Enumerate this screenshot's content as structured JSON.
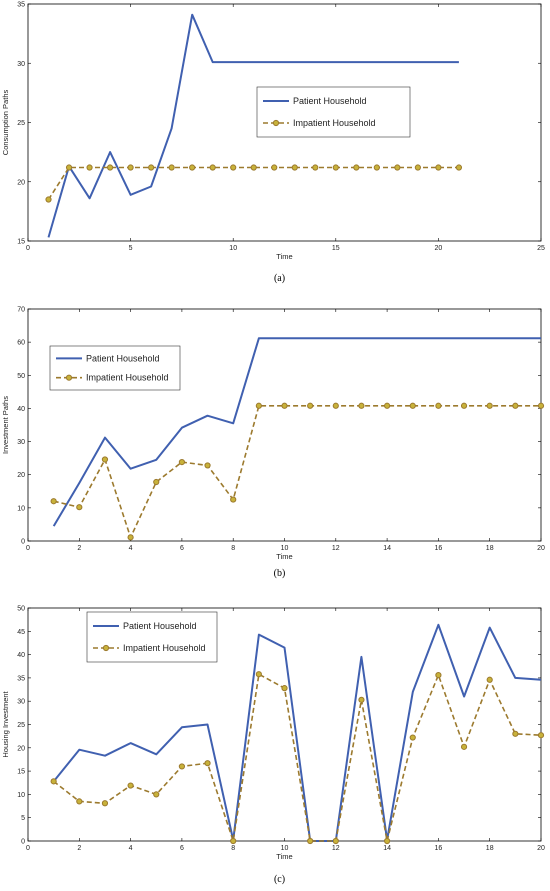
{
  "colors": {
    "patient": "#4060b0",
    "impatient": "#9c7a2e",
    "marker_fill": "#c8b23a"
  },
  "chart_data": [
    {
      "type": "line",
      "caption": "(a)",
      "ylabel": "Consumption Paths",
      "xlabel": "Time",
      "xlim": [
        0,
        25
      ],
      "ylim": [
        15,
        35
      ],
      "xticks": [
        0,
        5,
        10,
        15,
        20,
        25
      ],
      "yticks": [
        15,
        20,
        25,
        30,
        35
      ],
      "legend_position": "center-right",
      "series": [
        {
          "name": "Patient Household",
          "style": "solid",
          "x": [
            1,
            2,
            3,
            4,
            5,
            6,
            7,
            8,
            9,
            10,
            11,
            12,
            13,
            14,
            15,
            16,
            17,
            18,
            19,
            20,
            21
          ],
          "y": [
            15.3,
            21.3,
            18.6,
            22.5,
            18.9,
            19.6,
            24.5,
            34.1,
            30.1,
            30.1,
            30.1,
            30.1,
            30.1,
            30.1,
            30.1,
            30.1,
            30.1,
            30.1,
            30.1,
            30.1,
            30.1
          ]
        },
        {
          "name": "Impatient Household",
          "style": "dashed-marker",
          "x": [
            1,
            2,
            3,
            4,
            5,
            6,
            7,
            8,
            9,
            10,
            11,
            12,
            13,
            14,
            15,
            16,
            17,
            18,
            19,
            20,
            21
          ],
          "y": [
            18.5,
            21.2,
            21.2,
            21.2,
            21.2,
            21.2,
            21.2,
            21.2,
            21.2,
            21.2,
            21.2,
            21.2,
            21.2,
            21.2,
            21.2,
            21.2,
            21.2,
            21.2,
            21.2,
            21.2,
            21.2
          ]
        }
      ]
    },
    {
      "type": "line",
      "caption": "(b)",
      "ylabel": "Investment Paths",
      "xlabel": "Time",
      "xlim": [
        0,
        20
      ],
      "ylim": [
        0,
        70
      ],
      "xticks": [
        0,
        2,
        4,
        6,
        8,
        10,
        12,
        14,
        16,
        18,
        20
      ],
      "yticks": [
        0,
        10,
        20,
        30,
        40,
        50,
        60,
        70
      ],
      "legend_position": "upper-left",
      "series": [
        {
          "name": "Patient Household",
          "style": "solid",
          "x": [
            1,
            2,
            3,
            4,
            5,
            6,
            7,
            8,
            9,
            10,
            11,
            12,
            13,
            14,
            15,
            16,
            17,
            18,
            19,
            20
          ],
          "y": [
            4.5,
            17.5,
            31.2,
            21.8,
            24.5,
            34.2,
            37.8,
            35.5,
            61.2,
            61.2,
            61.2,
            61.2,
            61.2,
            61.2,
            61.2,
            61.2,
            61.2,
            61.2,
            61.2,
            61.2
          ]
        },
        {
          "name": "Impatient Household",
          "style": "dashed-marker",
          "x": [
            1,
            2,
            3,
            4,
            5,
            6,
            7,
            8,
            9,
            10,
            11,
            12,
            13,
            14,
            15,
            16,
            17,
            18,
            19,
            20
          ],
          "y": [
            12.0,
            10.2,
            24.6,
            1.1,
            17.8,
            23.8,
            22.8,
            12.5,
            40.8,
            40.8,
            40.8,
            40.8,
            40.8,
            40.8,
            40.8,
            40.8,
            40.8,
            40.8,
            40.8,
            40.8
          ]
        }
      ]
    },
    {
      "type": "line",
      "caption": "(c)",
      "ylabel": "Housing Investment",
      "xlabel": "Time",
      "xlim": [
        0,
        20
      ],
      "ylim": [
        0,
        50
      ],
      "xticks": [
        0,
        2,
        4,
        6,
        8,
        10,
        12,
        14,
        16,
        18,
        20
      ],
      "yticks": [
        0,
        5,
        10,
        15,
        20,
        25,
        30,
        35,
        40,
        45,
        50
      ],
      "legend_position": "upper-left",
      "series": [
        {
          "name": "Patient Household",
          "style": "solid",
          "x": [
            1,
            2,
            3,
            4,
            5,
            6,
            7,
            8,
            9,
            10,
            11,
            12,
            13,
            14,
            15,
            16,
            17,
            18,
            19,
            20
          ],
          "y": [
            12.8,
            19.6,
            18.3,
            21.0,
            18.6,
            24.4,
            25.0,
            0.2,
            44.3,
            41.5,
            0.0,
            0.0,
            39.5,
            0.2,
            32.0,
            46.4,
            31.0,
            45.8,
            35.0,
            34.6
          ]
        },
        {
          "name": "Impatient Household",
          "style": "dashed-marker",
          "x": [
            1,
            2,
            3,
            4,
            5,
            6,
            7,
            8,
            9,
            10,
            11,
            12,
            13,
            14,
            15,
            16,
            17,
            18,
            19,
            20
          ],
          "y": [
            12.8,
            8.5,
            8.1,
            11.9,
            10.0,
            16.0,
            16.7,
            0.0,
            35.8,
            32.8,
            0.0,
            0.0,
            30.3,
            0.0,
            22.2,
            35.6,
            20.2,
            34.6,
            23.0,
            22.7
          ]
        }
      ]
    }
  ]
}
